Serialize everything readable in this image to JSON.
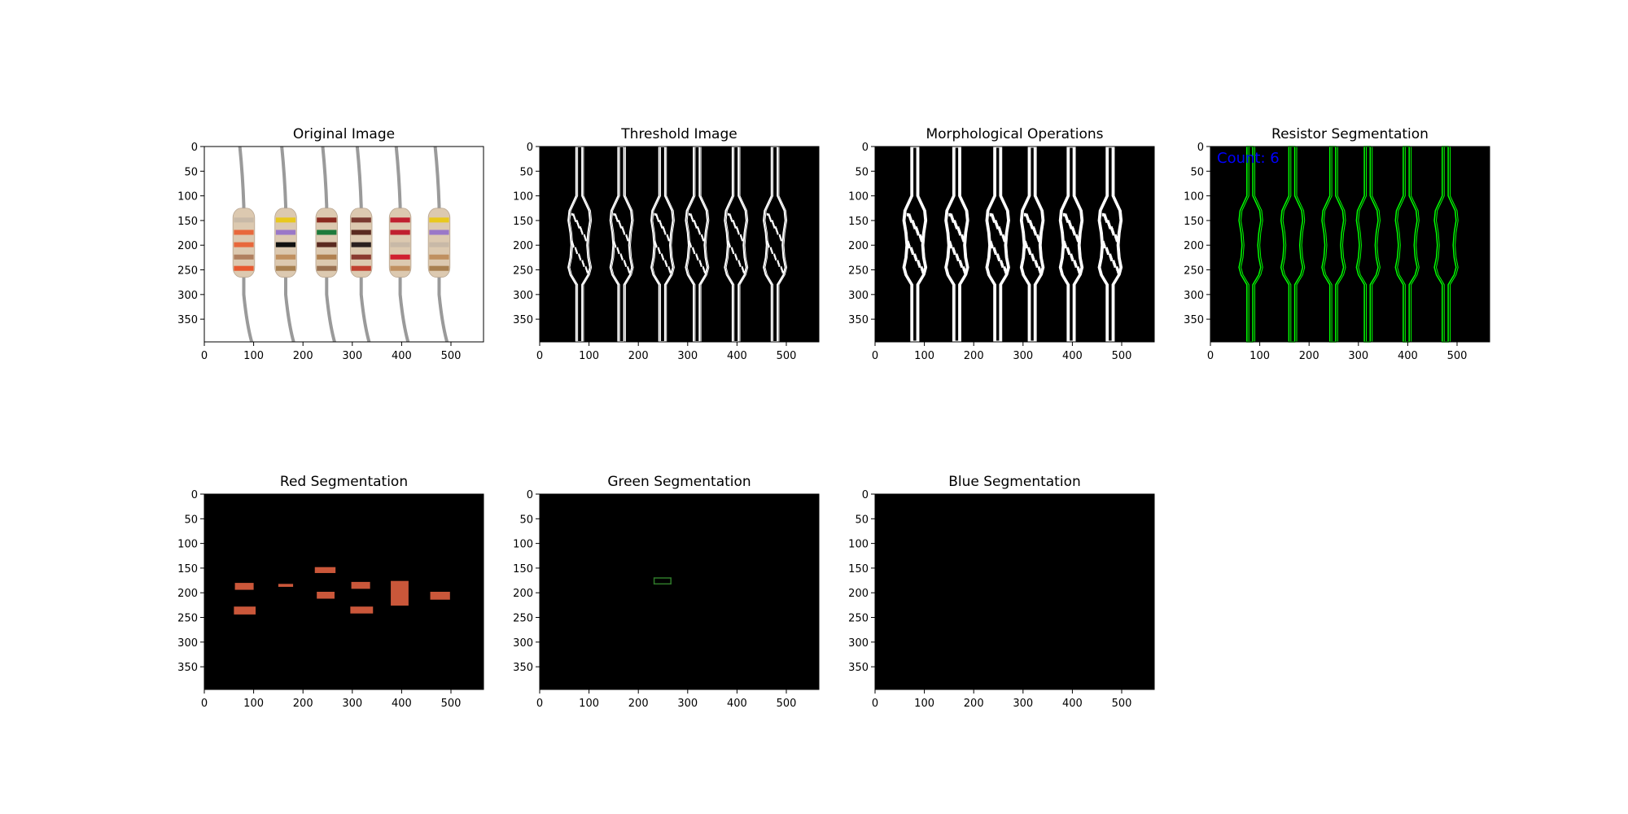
{
  "figure": {
    "panels": [
      {
        "id": "original",
        "title": "Original Image",
        "type": "photo"
      },
      {
        "id": "threshold",
        "title": "Threshold Image",
        "type": "threshold"
      },
      {
        "id": "morph",
        "title": "Morphological Operations",
        "type": "morph"
      },
      {
        "id": "contours",
        "title": "Resistor Segmentation",
        "type": "contours",
        "count_label": "Count: 6"
      },
      {
        "id": "red",
        "title": "Red Segmentation",
        "type": "red"
      },
      {
        "id": "green",
        "title": "Green Segmentation",
        "type": "green"
      },
      {
        "id": "blue",
        "title": "Blue Segmentation",
        "type": "blue"
      }
    ],
    "x_ticks": [
      "0",
      "100",
      "200",
      "300",
      "400",
      "500"
    ],
    "y_ticks": [
      "0",
      "50",
      "100",
      "150",
      "200",
      "250",
      "300",
      "350"
    ],
    "image_width": 566,
    "image_height": 396,
    "resistor_count": 6,
    "resistors": [
      {
        "x": 80,
        "bands": [
          "#c8b9a7",
          "#e8683c",
          "#e8683c",
          "#b08060",
          "#e85a30"
        ]
      },
      {
        "x": 165,
        "bands": [
          "#e8c81e",
          "#9a78c8",
          "#111111",
          "#c09060",
          "#a88050"
        ]
      },
      {
        "x": 248,
        "bands": [
          "#8a2a20",
          "#1e7a3c",
          "#5a2a20",
          "#b08050",
          "#9a7050"
        ]
      },
      {
        "x": 318,
        "bands": [
          "#7a3a30",
          "#5a2a20",
          "#2a2020",
          "#8a3a30",
          "#c04030"
        ]
      },
      {
        "x": 397,
        "bands": [
          "#c02030",
          "#c02030",
          "#c8b9a7",
          "#d02030",
          "#c09060"
        ]
      },
      {
        "x": 476,
        "bands": [
          "#e8c81e",
          "#9a78c8",
          "#c8b9a7",
          "#c09060",
          "#a88050"
        ]
      }
    ],
    "colors": {
      "contour": "#00ff00",
      "count_text": "#0000ff",
      "background_dark": "#000000",
      "resistor_body": "#dcc9b0",
      "red_segment": "#e06040",
      "green_segment": "#2f7a2a"
    }
  }
}
